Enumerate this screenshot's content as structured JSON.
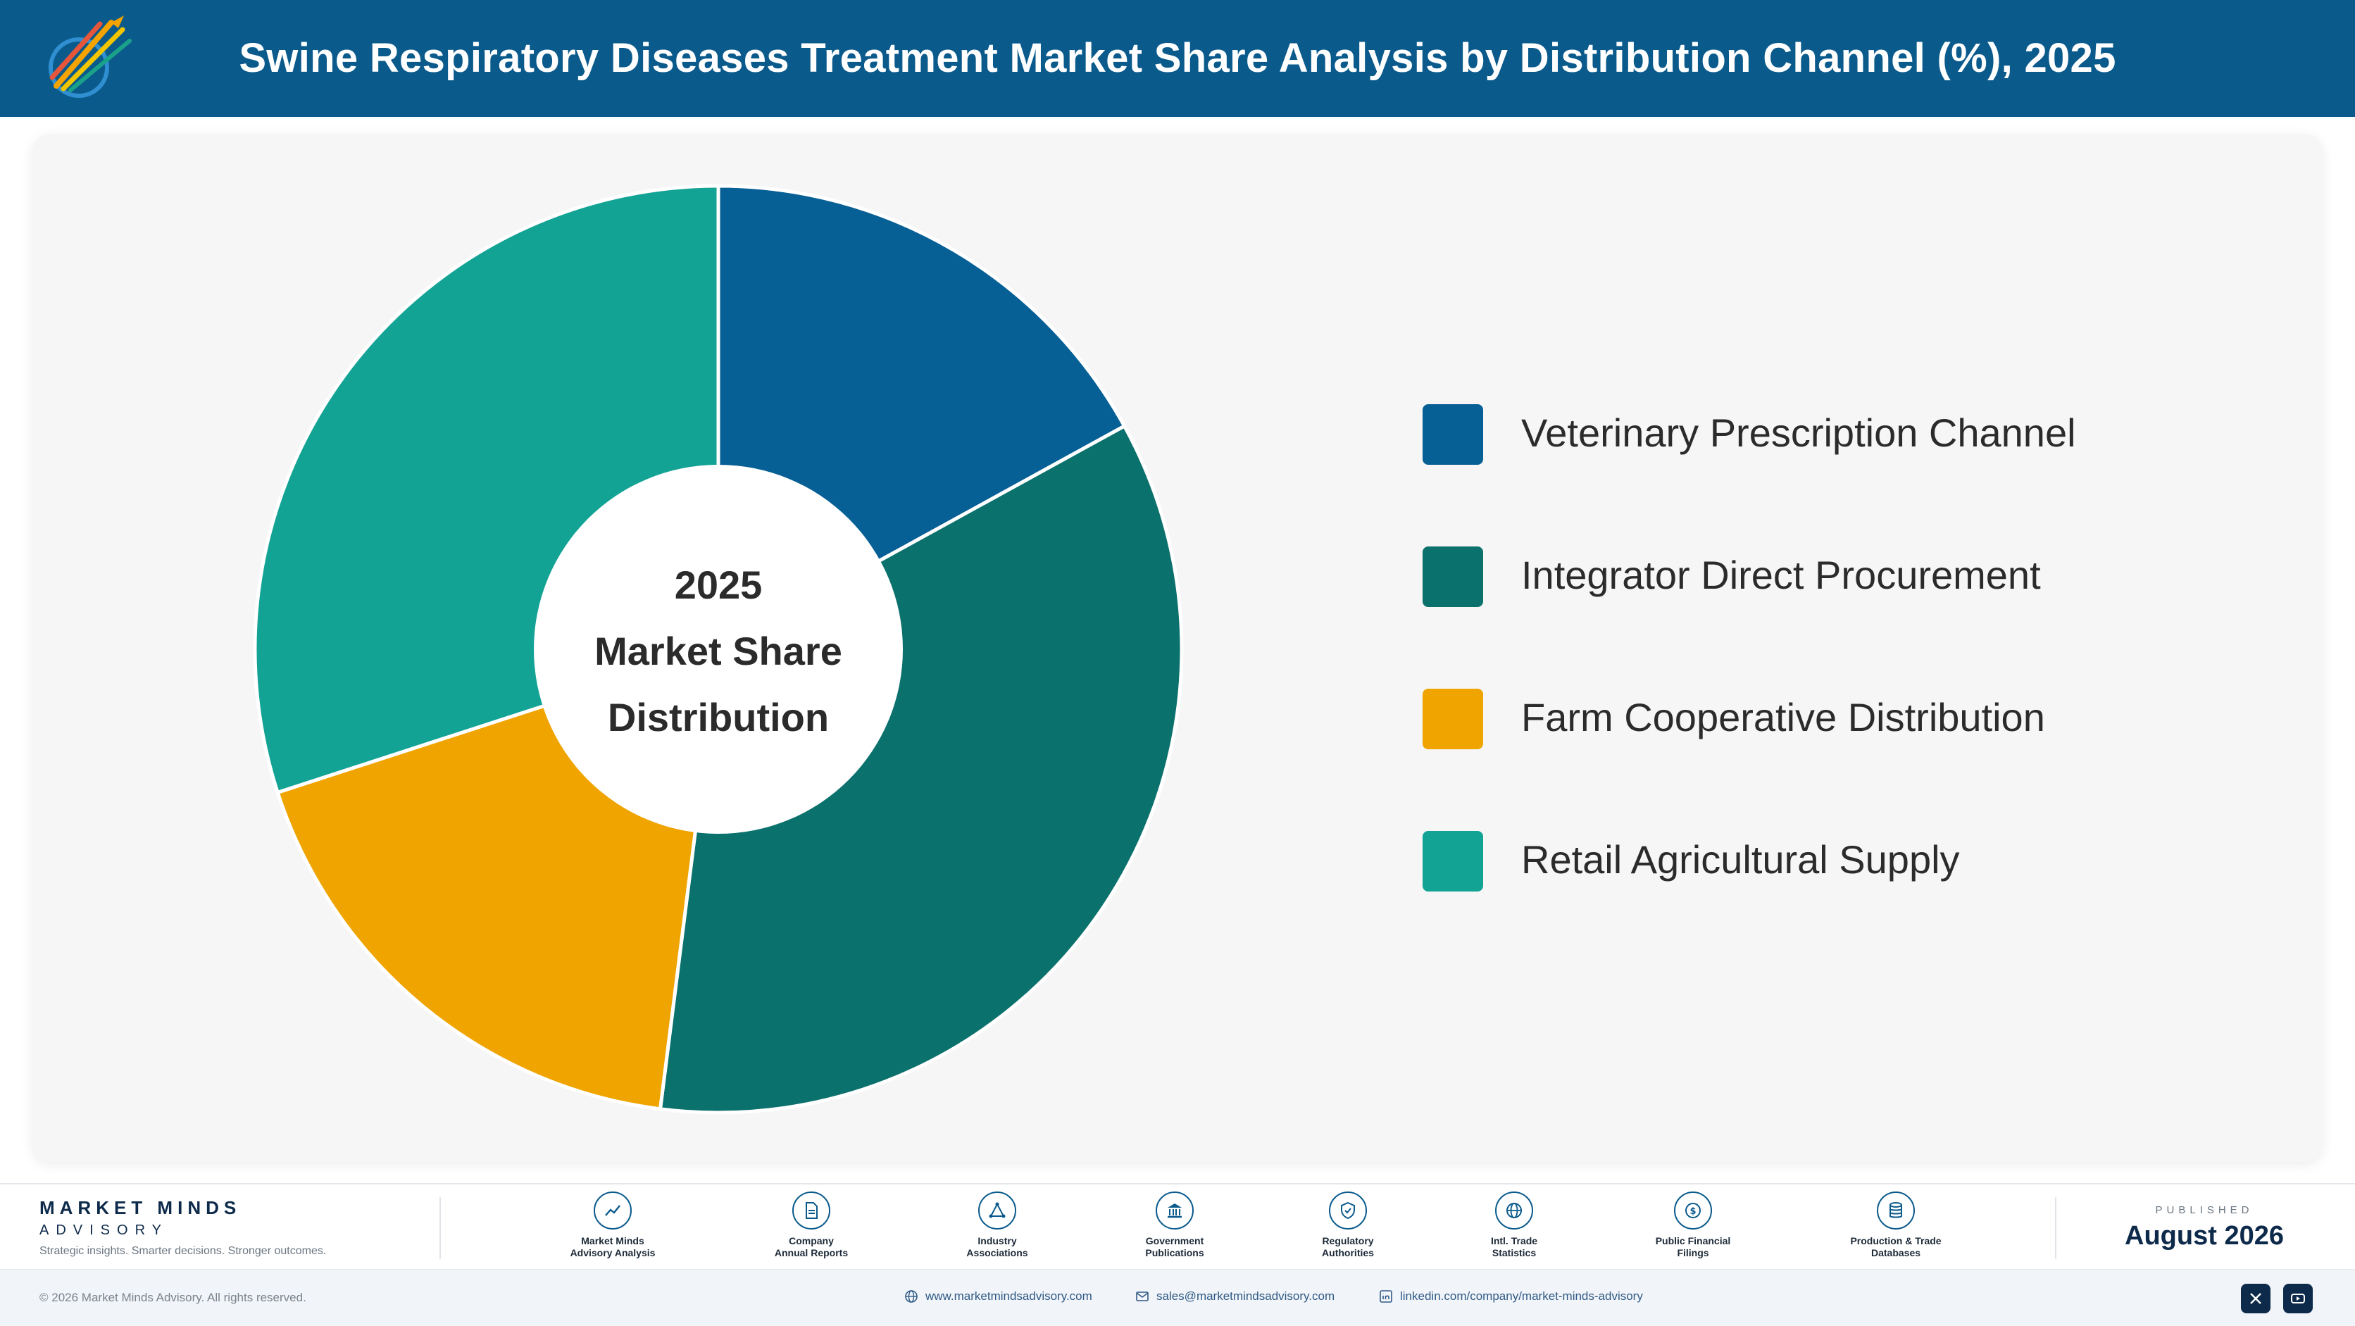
{
  "header": {
    "title": "Swine Respiratory Diseases Treatment Market Share Analysis by Distribution Channel (%), 2025"
  },
  "colors": {
    "header_bg": "#0a5a8c",
    "veterinary": "#065f95",
    "integrator": "#0b716c",
    "farm_coop": "#efa400",
    "retail": "#12a395"
  },
  "chart_data": {
    "type": "pie",
    "variant": "donut",
    "center_text": [
      "2025",
      "Market Share",
      "Distribution"
    ],
    "categories": [
      "Veterinary Prescription Channel",
      "Integrator Direct Procurement",
      "Farm Cooperative Distribution",
      "Retail Agricultural Supply"
    ],
    "values": [
      17,
      35,
      18,
      30
    ],
    "value_unit": "%",
    "data_labels_shown": false,
    "start_angle": "12 o'clock",
    "direction": "clockwise",
    "legend_position": "right",
    "colors": [
      "#065f95",
      "#0b716c",
      "#efa400",
      "#12a395"
    ]
  },
  "footer": {
    "brand_name": "MARKET MINDS",
    "brand_sub": "ADVISORY",
    "brand_tagline": "Strategic insights. Smarter decisions. Stronger outcomes.",
    "sources": [
      {
        "label": "Market Minds\nAdvisory Analysis",
        "icon": "trend-chart-icon"
      },
      {
        "label": "Company\nAnnual Reports",
        "icon": "document-icon"
      },
      {
        "label": "Industry\nAssociations",
        "icon": "network-icon"
      },
      {
        "label": "Government\nPublications",
        "icon": "government-building-icon"
      },
      {
        "label": "Regulatory\nAuthorities",
        "icon": "shield-check-icon"
      },
      {
        "label": "Intl. Trade\nStatistics",
        "icon": "globe-icon"
      },
      {
        "label": "Public Financial\nFilings",
        "icon": "dollar-coin-icon"
      },
      {
        "label": "Production & Trade\nDatabases",
        "icon": "database-icon"
      }
    ],
    "published_label": "PUBLISHED",
    "published_date": "August 2026"
  },
  "bottom_bar": {
    "copyright": "© 2026 Market Minds Advisory. All rights reserved.",
    "website": "www.marketmindsadvisory.com",
    "email": "sales@marketmindsadvisory.com",
    "linkedin": "linkedin.com/company/market-minds-advisory",
    "social_icons": [
      "x-icon",
      "youtube-icon"
    ]
  }
}
